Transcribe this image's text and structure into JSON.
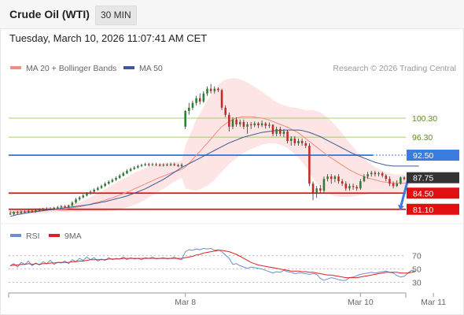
{
  "header": {
    "title": "Crude Oil (WTI)",
    "timeframe": "30 MIN"
  },
  "date_label": "Tuesday, March 10, 2026 11:07:41 AM CET",
  "colors": {
    "up": "#2e7d32",
    "down": "#c62828",
    "ma20": "#f28b82",
    "band_fill": "#fde0e0",
    "ma50": "#3d5a98",
    "rsi": "#6b8fd6",
    "ma9": "#e02020",
    "resistance": "#8bc34a",
    "blue_line": "#3a7be0",
    "support": "#e01010",
    "pivot": "#333333"
  },
  "chart_data": [
    {
      "type": "candlestick",
      "legend": [
        {
          "name": "MA 20 + Bollinger Bands",
          "color": "#f28b82"
        },
        {
          "name": "MA 50",
          "color": "#3d5a98"
        }
      ],
      "watermark": "Research © 2026 Trading Central",
      "ylim": [
        79.4,
        108.6
      ],
      "x_ticks": [
        "Mar 8",
        "Mar 10",
        "Mar 11"
      ],
      "x_tick_index": [
        48,
        96,
        116
      ],
      "levels": [
        {
          "label": "100.30",
          "value": 100.3,
          "kind": "resistance"
        },
        {
          "label": "96.30",
          "value": 96.3,
          "kind": "resistance"
        },
        {
          "label": "92.50",
          "value": 92.5,
          "kind": "blue_line"
        },
        {
          "label": "87.75",
          "value": 87.75,
          "kind": "pivot"
        },
        {
          "label": "84.50",
          "value": 84.5,
          "kind": "support"
        },
        {
          "label": "81.10",
          "value": 81.1,
          "kind": "support"
        }
      ],
      "candles": [
        [
          80.2,
          80.1,
          80.8,
          79.9
        ],
        [
          80.1,
          80.5,
          80.7,
          79.9
        ],
        [
          80.5,
          80.3,
          80.8,
          80.1
        ],
        [
          80.3,
          80.6,
          80.9,
          80.1
        ],
        [
          80.6,
          80.5,
          80.9,
          80.3
        ],
        [
          80.5,
          80.8,
          81.0,
          80.3
        ],
        [
          80.8,
          80.6,
          81.0,
          80.4
        ],
        [
          80.6,
          80.9,
          81.1,
          80.4
        ],
        [
          80.9,
          81.0,
          81.3,
          80.7
        ],
        [
          81.0,
          81.1,
          81.4,
          80.8
        ],
        [
          81.1,
          81.2,
          81.5,
          80.9
        ],
        [
          81.2,
          81.1,
          81.5,
          80.9
        ],
        [
          81.1,
          81.4,
          81.6,
          80.9
        ],
        [
          81.4,
          81.5,
          81.8,
          81.2
        ],
        [
          81.5,
          81.7,
          82.0,
          81.3
        ],
        [
          81.7,
          81.6,
          82.0,
          81.4
        ],
        [
          81.6,
          81.9,
          82.1,
          81.4
        ],
        [
          81.9,
          82.5,
          82.8,
          81.7
        ],
        [
          82.5,
          83.2,
          83.5,
          82.3
        ],
        [
          83.2,
          83.6,
          83.9,
          82.9
        ],
        [
          83.6,
          84.0,
          84.3,
          83.4
        ],
        [
          84.0,
          84.4,
          84.7,
          83.8
        ],
        [
          84.4,
          84.8,
          85.1,
          84.2
        ],
        [
          84.8,
          85.2,
          85.5,
          84.6
        ],
        [
          85.2,
          85.6,
          85.9,
          85.0
        ],
        [
          85.6,
          86.0,
          86.3,
          85.4
        ],
        [
          86.0,
          86.5,
          86.8,
          85.8
        ],
        [
          86.5,
          86.9,
          87.2,
          86.3
        ],
        [
          86.9,
          87.3,
          87.6,
          86.7
        ],
        [
          87.3,
          87.7,
          88.0,
          87.1
        ],
        [
          87.7,
          88.2,
          88.5,
          87.5
        ],
        [
          88.2,
          88.7,
          89.0,
          88.0
        ],
        [
          88.7,
          89.2,
          89.5,
          88.5
        ],
        [
          89.2,
          89.6,
          89.9,
          89.0
        ],
        [
          89.6,
          89.9,
          90.2,
          89.4
        ],
        [
          89.9,
          90.2,
          90.5,
          89.7
        ],
        [
          90.2,
          90.4,
          90.7,
          90.0
        ],
        [
          90.4,
          90.6,
          90.9,
          90.2
        ],
        [
          90.6,
          90.4,
          90.9,
          90.1
        ],
        [
          90.4,
          90.6,
          90.9,
          90.2
        ],
        [
          90.6,
          90.5,
          90.9,
          90.2
        ],
        [
          90.5,
          90.3,
          90.8,
          90.1
        ],
        [
          90.3,
          90.5,
          90.8,
          90.1
        ],
        [
          90.5,
          90.4,
          90.8,
          90.2
        ],
        [
          90.4,
          90.6,
          90.9,
          90.2
        ],
        [
          90.6,
          90.4,
          90.9,
          90.2
        ],
        [
          90.4,
          90.2,
          90.7,
          90.0
        ],
        [
          90.2,
          90.5,
          90.8,
          90.0
        ],
        [
          98.5,
          101.8,
          102.0,
          98.0
        ],
        [
          101.8,
          102.5,
          103.5,
          101.0
        ],
        [
          102.5,
          103.5,
          104.0,
          102.0
        ],
        [
          103.5,
          104.5,
          105.0,
          103.0
        ],
        [
          104.5,
          103.8,
          105.5,
          103.2
        ],
        [
          103.8,
          105.5,
          106.0,
          103.5
        ],
        [
          105.5,
          106.5,
          107.0,
          105.0
        ],
        [
          106.5,
          106.0,
          107.5,
          105.5
        ],
        [
          106.0,
          106.5,
          107.0,
          105.5
        ],
        [
          106.5,
          106.2,
          106.8,
          105.8
        ],
        [
          106.2,
          102.5,
          106.5,
          102.0
        ],
        [
          102.5,
          101.0,
          103.0,
          100.5
        ],
        [
          101.0,
          98.5,
          101.5,
          97.5
        ],
        [
          98.5,
          100.0,
          100.5,
          98.0
        ],
        [
          100.0,
          99.0,
          100.5,
          98.5
        ],
        [
          99.0,
          99.5,
          100.0,
          98.5
        ],
        [
          99.5,
          98.5,
          100.0,
          98.0
        ],
        [
          98.5,
          99.0,
          99.5,
          97.0
        ],
        [
          99.0,
          98.8,
          99.5,
          98.0
        ],
        [
          98.8,
          99.2,
          99.6,
          98.4
        ],
        [
          99.2,
          98.8,
          99.5,
          98.2
        ],
        [
          98.8,
          99.2,
          99.8,
          98.4
        ],
        [
          99.2,
          98.7,
          99.5,
          98.1
        ],
        [
          98.7,
          98.9,
          99.4,
          98.2
        ],
        [
          98.9,
          97.0,
          99.0,
          96.5
        ],
        [
          97.0,
          98.0,
          98.5,
          96.5
        ],
        [
          98.0,
          97.0,
          98.5,
          96.5
        ],
        [
          97.0,
          97.5,
          98.0,
          96.3
        ],
        [
          97.5,
          95.5,
          97.8,
          95.0
        ],
        [
          95.5,
          96.0,
          96.5,
          94.5
        ],
        [
          96.0,
          95.0,
          96.5,
          94.5
        ],
        [
          95.0,
          95.5,
          96.0,
          94.5
        ],
        [
          95.5,
          95.0,
          96.0,
          94.5
        ],
        [
          95.0,
          94.5,
          95.5,
          94.0
        ],
        [
          94.5,
          86.5,
          95.0,
          86.0
        ],
        [
          86.5,
          84.5,
          87.0,
          83.0
        ],
        [
          84.5,
          85.5,
          86.0,
          83.5
        ],
        [
          85.5,
          85.0,
          86.2,
          84.5
        ],
        [
          85.0,
          87.5,
          88.0,
          84.5
        ],
        [
          87.5,
          88.0,
          88.5,
          87.0
        ],
        [
          88.0,
          87.5,
          88.5,
          86.5
        ],
        [
          87.5,
          88.0,
          88.3,
          86.8
        ],
        [
          88.0,
          87.0,
          88.5,
          86.5
        ],
        [
          87.0,
          86.5,
          87.5,
          86.0
        ],
        [
          86.5,
          85.5,
          87.0,
          85.0
        ],
        [
          85.5,
          86.0,
          86.5,
          85.0
        ],
        [
          86.0,
          85.8,
          86.5,
          85.2
        ],
        [
          85.8,
          85.5,
          86.2,
          85.0
        ],
        [
          85.5,
          87.0,
          87.5,
          85.2
        ],
        [
          87.0,
          88.0,
          88.5,
          86.8
        ],
        [
          88.0,
          88.5,
          89.0,
          87.5
        ],
        [
          88.5,
          88.8,
          89.2,
          88.0
        ],
        [
          88.8,
          88.5,
          89.2,
          88.0
        ],
        [
          88.5,
          88.7,
          89.0,
          88.0
        ],
        [
          88.7,
          88.2,
          89.0,
          87.8
        ],
        [
          88.2,
          87.5,
          88.5,
          87.0
        ],
        [
          87.5,
          86.5,
          88.0,
          86.0
        ],
        [
          86.5,
          86.0,
          87.0,
          85.5
        ],
        [
          86.0,
          86.5,
          87.2,
          85.8
        ],
        [
          86.5,
          87.8,
          88.0,
          86.3
        ],
        [
          87.8,
          87.5,
          88.0,
          87.2
        ]
      ],
      "ma20": [
        80.5,
        80.5,
        80.5,
        80.6,
        80.6,
        80.7,
        80.7,
        80.8,
        80.8,
        80.9,
        80.9,
        81.0,
        81.0,
        81.1,
        81.2,
        81.2,
        81.3,
        81.4,
        81.5,
        81.6,
        81.8,
        82.0,
        82.2,
        82.4,
        82.6,
        82.8,
        83.0,
        83.3,
        83.5,
        83.8,
        84.1,
        84.4,
        84.7,
        85.0,
        85.4,
        85.7,
        86.1,
        86.4,
        86.8,
        87.1,
        87.5,
        87.8,
        88.1,
        88.4,
        88.7,
        89.0,
        89.2,
        89.5,
        90.0,
        90.8,
        91.6,
        92.5,
        93.3,
        94.2,
        95.0,
        95.9,
        96.8,
        97.7,
        98.5,
        99.1,
        99.6,
        100.0,
        100.3,
        100.5,
        100.6,
        100.6,
        100.6,
        100.5,
        100.4,
        100.3,
        100.1,
        99.9,
        99.6,
        99.3,
        99.0,
        98.7,
        98.4,
        98.0,
        97.6,
        97.2,
        96.6,
        96.0,
        95.4,
        94.8,
        94.2,
        93.6,
        93.0,
        92.4,
        91.9,
        91.4,
        90.9,
        90.4,
        89.9,
        89.4,
        89.0,
        88.6,
        88.3,
        88.0,
        87.7,
        87.5,
        87.3,
        87.1,
        86.9,
        86.8,
        86.7,
        86.6,
        86.6,
        86.6,
        86.6,
        86.7,
        86.8,
        86.9,
        87.0
      ],
      "band_width": [
        0.6,
        0.6,
        0.6,
        0.6,
        0.6,
        0.6,
        0.6,
        0.6,
        0.6,
        0.6,
        0.6,
        0.6,
        0.6,
        0.6,
        0.7,
        0.7,
        0.7,
        0.8,
        0.9,
        1.0,
        1.1,
        1.3,
        1.5,
        1.7,
        1.9,
        2.1,
        2.3,
        2.5,
        2.7,
        2.9,
        3.0,
        3.1,
        3.2,
        3.3,
        3.4,
        3.4,
        3.4,
        3.3,
        3.2,
        3.1,
        3.0,
        2.9,
        2.7,
        2.5,
        2.3,
        2.1,
        1.9,
        1.8,
        4.5,
        5.5,
        6.5,
        7.5,
        8.0,
        8.5,
        9.0,
        9.3,
        9.5,
        9.5,
        9.5,
        9.3,
        9.0,
        8.7,
        8.4,
        8.0,
        7.6,
        7.2,
        6.8,
        6.4,
        6.0,
        5.6,
        5.2,
        4.9,
        4.6,
        4.4,
        4.3,
        4.3,
        4.4,
        4.6,
        4.9,
        5.2,
        5.6,
        6.0,
        6.6,
        7.2,
        7.6,
        7.9,
        8.0,
        8.0,
        7.8,
        7.5,
        7.1,
        6.7,
        6.2,
        5.7,
        5.2,
        4.7,
        4.2,
        3.8,
        3.4,
        3.0,
        2.7,
        2.5,
        2.3,
        2.1,
        2.0,
        1.9,
        1.9,
        1.8,
        1.8,
        1.8,
        1.8,
        1.8,
        1.8
      ],
      "ma50": [
        79.6,
        79.8,
        80.0,
        80.1,
        80.3,
        80.4,
        80.5,
        80.6,
        80.7,
        80.8,
        80.9,
        81.0,
        81.1,
        81.2,
        81.3,
        81.4,
        81.5,
        81.6,
        81.7,
        81.8,
        81.9,
        82.0,
        82.1,
        82.3,
        82.4,
        82.6,
        82.7,
        82.9,
        83.1,
        83.3,
        83.5,
        83.7,
        83.9,
        84.2,
        84.5,
        84.8,
        85.1,
        85.4,
        85.8,
        86.2,
        86.6,
        87.0,
        87.4,
        87.9,
        88.4,
        88.9,
        89.4,
        89.9,
        90.3,
        90.7,
        91.1,
        91.5,
        91.9,
        92.3,
        92.7,
        93.1,
        93.5,
        93.9,
        94.3,
        94.7,
        95.1,
        95.4,
        95.7,
        96.0,
        96.3,
        96.5,
        96.7,
        96.9,
        97.1,
        97.3,
        97.4,
        97.5,
        97.6,
        97.7,
        97.7,
        97.8,
        97.8,
        97.8,
        97.8,
        97.8,
        97.7,
        97.5,
        97.3,
        97.0,
        96.7,
        96.4,
        96.0,
        95.6,
        95.2,
        94.8,
        94.4,
        94.0,
        93.6,
        93.2,
        92.8,
        92.5,
        92.2,
        91.9,
        91.6,
        91.3,
        91.0,
        90.8,
        90.6,
        90.4,
        90.3,
        90.2,
        90.2,
        90.2,
        90.2,
        90.2,
        90.2,
        90.2,
        90.2
      ]
    },
    {
      "type": "line",
      "legend": [
        {
          "name": "RSI",
          "color": "#6b8fd6"
        },
        {
          "name": "9MA",
          "color": "#e02020"
        }
      ],
      "ylim": [
        20,
        85
      ],
      "y_ticks": [
        {
          "label": "70",
          "value": 70
        },
        {
          "label": "50",
          "value": 50
        },
        {
          "label": "30",
          "value": 30
        }
      ],
      "rsi": [
        55,
        58,
        53,
        60,
        57,
        62,
        55,
        59,
        56,
        61,
        58,
        63,
        57,
        60,
        59,
        62,
        58,
        64,
        61,
        66,
        63,
        68,
        64,
        67,
        62,
        65,
        63,
        67,
        64,
        66,
        65,
        68,
        64,
        67,
        65,
        66,
        64,
        67,
        66,
        68,
        65,
        66,
        67,
        65,
        66,
        68,
        65,
        64,
        76,
        79,
        78,
        80,
        79,
        81,
        80,
        81,
        78,
        79,
        76,
        71,
        66,
        57,
        58,
        55,
        53,
        51,
        53,
        52,
        51,
        50,
        48,
        46,
        44,
        46,
        45,
        48,
        46,
        45,
        43,
        44,
        44,
        43,
        42,
        43,
        42,
        36,
        33,
        35,
        37,
        36,
        34,
        33,
        33,
        37,
        38,
        40,
        42,
        43,
        44,
        45,
        44,
        45,
        46,
        47,
        45,
        44,
        40,
        38,
        39,
        44,
        48,
        47
      ],
      "ma9": [
        55,
        56,
        56,
        57,
        57,
        58,
        57,
        58,
        57,
        58,
        58,
        59,
        59,
        60,
        60,
        60,
        60,
        61,
        61,
        62,
        62,
        63,
        64,
        64,
        64,
        64,
        64,
        65,
        65,
        65,
        65,
        66,
        66,
        66,
        66,
        66,
        66,
        66,
        66,
        66,
        66,
        66,
        66,
        66,
        66,
        66,
        66,
        66,
        67,
        68,
        69,
        71,
        72,
        74,
        75,
        76,
        77,
        78,
        78,
        77,
        76,
        74,
        72,
        69,
        66,
        63,
        60,
        58,
        56,
        55,
        54,
        53,
        52,
        51,
        50,
        49,
        48,
        47,
        47,
        47,
        46,
        46,
        45,
        45,
        44,
        43,
        42,
        41,
        41,
        40,
        39,
        38,
        37,
        37,
        37,
        37,
        38,
        39,
        40,
        41,
        42,
        43,
        44,
        45,
        45,
        45,
        45,
        44,
        44,
        44,
        45,
        46
      ]
    }
  ]
}
